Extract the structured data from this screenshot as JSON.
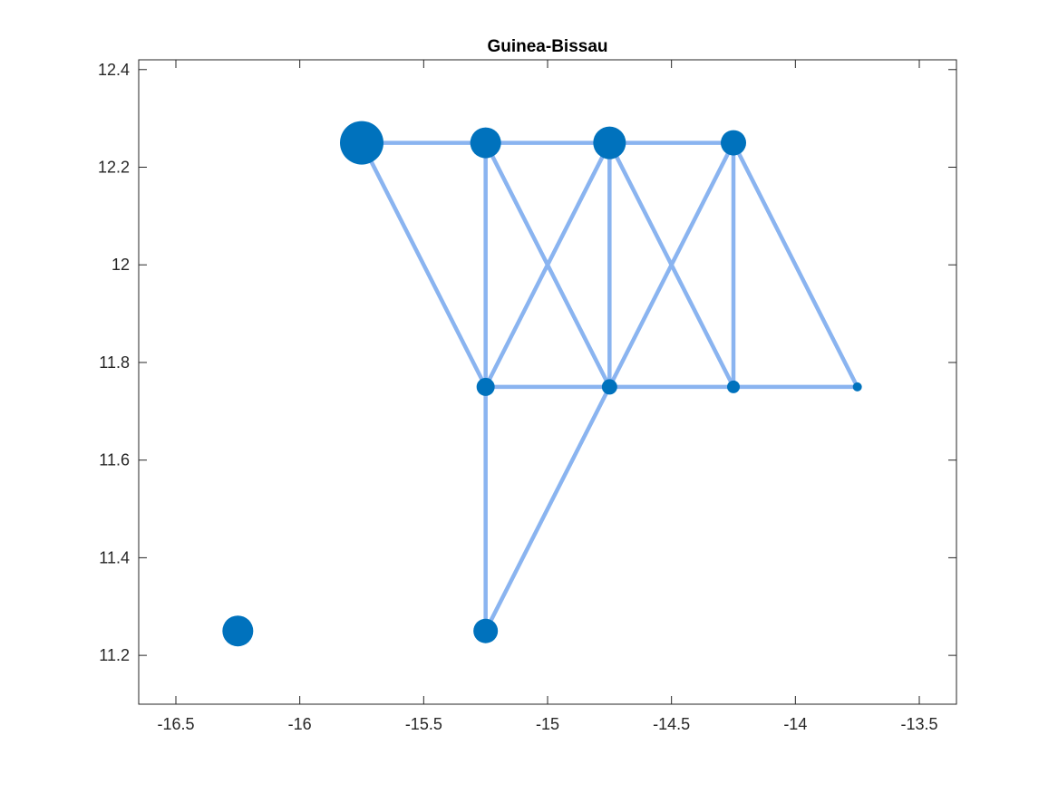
{
  "chart_data": {
    "type": "scatter",
    "title": "Guinea-Bissau",
    "xlabel": "",
    "ylabel": "",
    "xlim": [
      -16.65,
      -13.35
    ],
    "ylim": [
      11.1,
      12.42
    ],
    "xticks": [
      -16.5,
      -16,
      -15.5,
      -15,
      -14.5,
      -14,
      -13.5
    ],
    "xtick_labels": [
      "-16.5",
      "-16",
      "-15.5",
      "-15",
      "-14.5",
      "-14",
      "-13.5"
    ],
    "yticks": [
      11.2,
      11.4,
      11.6,
      11.8,
      12,
      12.2,
      12.4
    ],
    "ytick_labels": [
      "11.2",
      "11.4",
      "11.6",
      "11.8",
      "12",
      "12.2",
      "12.4"
    ],
    "grid": false,
    "box": true,
    "nodes": [
      {
        "x": -15.75,
        "y": 12.25,
        "size": 24
      },
      {
        "x": -15.25,
        "y": 12.25,
        "size": 17
      },
      {
        "x": -14.75,
        "y": 12.25,
        "size": 18
      },
      {
        "x": -14.25,
        "y": 12.25,
        "size": 14
      },
      {
        "x": -15.25,
        "y": 11.75,
        "size": 10
      },
      {
        "x": -14.75,
        "y": 11.75,
        "size": 8.5
      },
      {
        "x": -14.25,
        "y": 11.75,
        "size": 7
      },
      {
        "x": -13.75,
        "y": 11.75,
        "size": 5
      },
      {
        "x": -15.25,
        "y": 11.25,
        "size": 13.5
      },
      {
        "x": -16.25,
        "y": 11.25,
        "size": 17
      }
    ],
    "edges": [
      [
        0,
        1
      ],
      [
        1,
        2
      ],
      [
        2,
        3
      ],
      [
        0,
        4
      ],
      [
        1,
        4
      ],
      [
        1,
        5
      ],
      [
        2,
        4
      ],
      [
        2,
        5
      ],
      [
        2,
        6
      ],
      [
        3,
        5
      ],
      [
        3,
        6
      ],
      [
        3,
        7
      ],
      [
        4,
        5
      ],
      [
        5,
        6
      ],
      [
        6,
        7
      ],
      [
        4,
        8
      ],
      [
        5,
        8
      ]
    ],
    "colors": {
      "node": "#0072BD",
      "edge": "#8AB4F0",
      "axis": "#262626"
    }
  }
}
